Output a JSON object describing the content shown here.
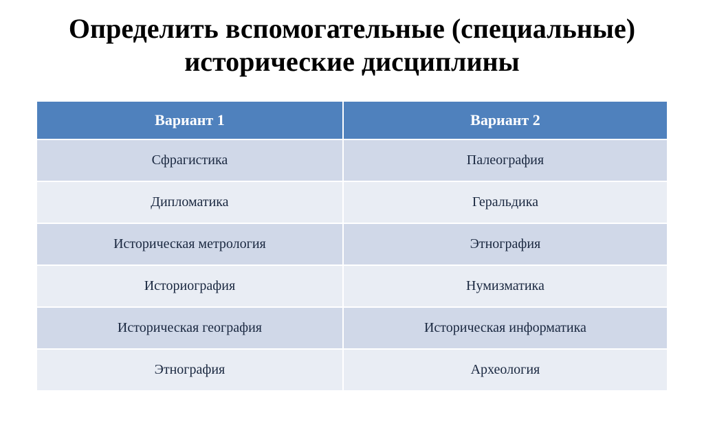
{
  "title": "Определить вспомогательные (специальные) исторические дисциплины",
  "table": {
    "type": "table",
    "header_bg": "#4f81bd",
    "header_text_color": "#ffffff",
    "row_colors": [
      "#d0d8e8",
      "#e9edf4"
    ],
    "cell_text_color": "#1a2840",
    "border_color": "#ffffff",
    "title_fontsize": 40,
    "header_fontsize": 22,
    "cell_fontsize": 20,
    "columns": [
      "Вариант 1",
      "Вариант 2"
    ],
    "rows": [
      [
        "Сфрагистика",
        "Палеография"
      ],
      [
        "Дипломатика",
        "Геральдика"
      ],
      [
        "Историческая метрология",
        "Этнография"
      ],
      [
        "Историография",
        "Нумизматика"
      ],
      [
        "Историческая география",
        "Историческая информатика"
      ],
      [
        "Этнография",
        "Археология"
      ]
    ]
  }
}
